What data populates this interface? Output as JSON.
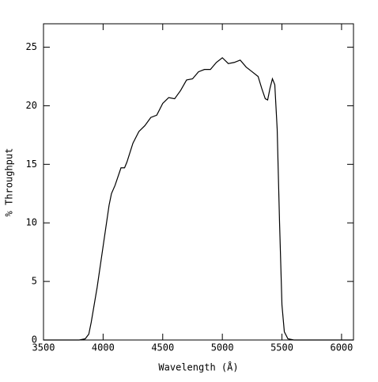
{
  "chart_data": {
    "type": "line",
    "x_label": "Wavelength (Å)",
    "y_label": "% Throughput",
    "x": [
      3500,
      3800,
      3850,
      3880,
      3900,
      3950,
      4000,
      4050,
      4070,
      4100,
      4150,
      4180,
      4200,
      4250,
      4300,
      4350,
      4400,
      4450,
      4500,
      4550,
      4600,
      4650,
      4700,
      4750,
      4800,
      4850,
      4900,
      4950,
      5000,
      5050,
      5100,
      5150,
      5200,
      5250,
      5300,
      5330,
      5360,
      5380,
      5400,
      5420,
      5440,
      5460,
      5480,
      5500,
      5520,
      5550,
      5600,
      6100
    ],
    "values": [
      0,
      0,
      0.1,
      0.5,
      1.5,
      4.5,
      8,
      11.5,
      12.5,
      13.2,
      14.7,
      14.7,
      15.2,
      16.8,
      17.8,
      18.3,
      19,
      19.2,
      20.2,
      20.7,
      20.6,
      21.3,
      22.2,
      22.3,
      22.9,
      23.1,
      23.1,
      23.7,
      24.1,
      23.6,
      23.7,
      23.9,
      23.3,
      22.9,
      22.5,
      21.5,
      20.6,
      20.5,
      21.5,
      22.3,
      21.8,
      18,
      10,
      3,
      0.7,
      0.1,
      0,
      0
    ],
    "color": "#000000",
    "xlim": [
      3500,
      6100
    ],
    "xticks": [
      3500,
      4000,
      4500,
      5000,
      5500,
      6000
    ],
    "ylim": [
      0,
      27
    ],
    "yticks": [
      0,
      5,
      10,
      15,
      20,
      25
    ],
    "grid": false
  }
}
